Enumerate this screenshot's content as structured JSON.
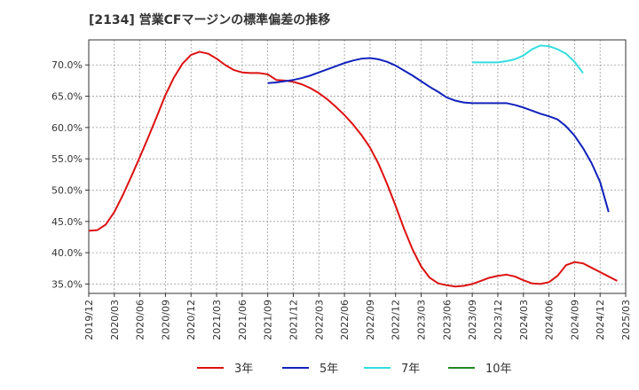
{
  "chart_data": {
    "type": "line",
    "title": "[2134]  営業CFマージンの標準偏差の推移",
    "xlabel": "",
    "ylabel": "",
    "ylim": [
      33.5,
      74.0
    ],
    "y_ticks": [
      35.0,
      40.0,
      45.0,
      50.0,
      55.0,
      60.0,
      65.0,
      70.0
    ],
    "y_tick_labels": [
      "35.0%",
      "40.0%",
      "45.0%",
      "50.0%",
      "55.0%",
      "60.0%",
      "65.0%",
      "70.0%"
    ],
    "x_tick_labels": [
      "2019/12",
      "2020/03",
      "2020/06",
      "2020/09",
      "2020/12",
      "2021/03",
      "2021/06",
      "2021/09",
      "2021/12",
      "2022/03",
      "2022/06",
      "2022/09",
      "2022/12",
      "2023/03",
      "2023/06",
      "2023/09",
      "2023/12",
      "2024/03",
      "2024/06",
      "2024/09",
      "2024/12",
      "2025/03"
    ],
    "grid": true,
    "legend_position": "bottom",
    "series": [
      {
        "name": "3年",
        "color": "#dd1111",
        "start_month_index": 0,
        "values": [
          43.5,
          43.6,
          44.5,
          46.5,
          49.2,
          52.2,
          55.3,
          58.5,
          61.8,
          65.2,
          68.0,
          70.2,
          71.6,
          72.1,
          71.8,
          71.0,
          70.0,
          69.2,
          68.8,
          68.7,
          68.7,
          68.5,
          67.6,
          67.5,
          67.3,
          66.9,
          66.3,
          65.5,
          64.5,
          63.3,
          62.0,
          60.5,
          58.8,
          56.8,
          54.2,
          51.0,
          47.5,
          43.8,
          40.5,
          37.8,
          36.0,
          35.1,
          34.8,
          34.6,
          34.7,
          35.0,
          35.5,
          36.0,
          36.3,
          36.5,
          36.2,
          35.6,
          35.1,
          35.0,
          35.3,
          36.3,
          38.0,
          38.5,
          38.3,
          37.6,
          36.9,
          36.2,
          35.5
        ]
      },
      {
        "name": "5年",
        "color": "#1122bb",
        "start_month_index": 21,
        "values": [
          67.1,
          67.2,
          67.4,
          67.6,
          67.9,
          68.3,
          68.8,
          69.3,
          69.8,
          70.3,
          70.7,
          71.0,
          71.1,
          70.9,
          70.5,
          69.9,
          69.1,
          68.3,
          67.4,
          66.5,
          65.7,
          64.8,
          64.3,
          64.0,
          63.9,
          63.9,
          63.9,
          63.9,
          63.9,
          63.6,
          63.2,
          62.7,
          62.2,
          61.8,
          61.3,
          60.2,
          58.7,
          56.7,
          54.3,
          51.3,
          46.5
        ]
      },
      {
        "name": "7年",
        "color": "#33dddd",
        "start_month_index": 45,
        "values": [
          70.4,
          70.4,
          70.4,
          70.4,
          70.6,
          70.9,
          71.5,
          72.5,
          73.1,
          73.0,
          72.5,
          71.8,
          70.5,
          68.7
        ]
      },
      {
        "name": "10年",
        "color": "#228822",
        "start_month_index": 0,
        "values": []
      }
    ]
  }
}
